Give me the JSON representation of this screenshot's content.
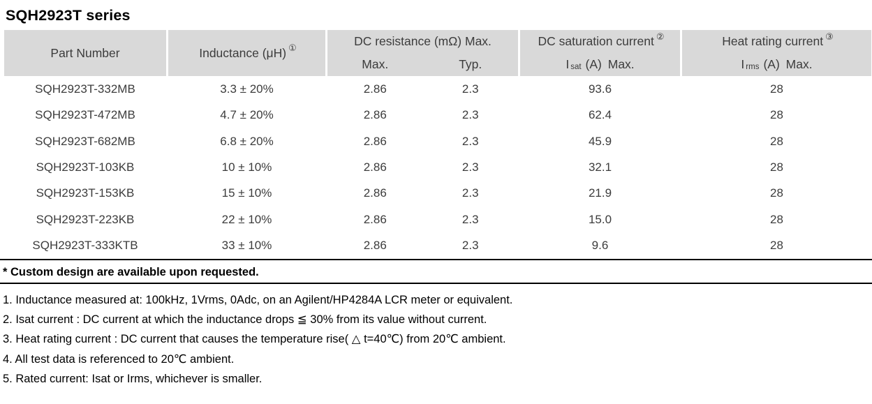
{
  "title": "SQH2923T series",
  "table": {
    "header": {
      "part_number": "Part Number",
      "inductance": "Inductance (μH)",
      "inductance_note": "①",
      "resistance": "DC resistance (mΩ) Max.",
      "res_max": "Max.",
      "res_typ": "Typ.",
      "saturation": "DC saturation current",
      "saturation_note": "②",
      "sat_symbol": "I",
      "sat_subscript": "sat",
      "sat_unit": "(A) Max.",
      "heat": "Heat rating current",
      "heat_note": "③",
      "heat_symbol": "I",
      "heat_subscript": "rms",
      "heat_unit": "(A) Max."
    },
    "rows": [
      {
        "part": "SQH2923T-332MB",
        "inductance": "3.3 ± 20%",
        "max": "2.86",
        "typ": "2.3",
        "isat": "93.6",
        "irms": "28"
      },
      {
        "part": "SQH2923T-472MB",
        "inductance": "4.7 ± 20%",
        "max": "2.86",
        "typ": "2.3",
        "isat": "62.4",
        "irms": "28"
      },
      {
        "part": "SQH2923T-682MB",
        "inductance": "6.8 ± 20%",
        "max": "2.86",
        "typ": "2.3",
        "isat": "45.9",
        "irms": "28"
      },
      {
        "part": "SQH2923T-103KB",
        "inductance": "10 ± 10%",
        "max": "2.86",
        "typ": "2.3",
        "isat": "32.1",
        "irms": "28"
      },
      {
        "part": "SQH2923T-153KB",
        "inductance": "15 ± 10%",
        "max": "2.86",
        "typ": "2.3",
        "isat": "21.9",
        "irms": "28"
      },
      {
        "part": "SQH2923T-223KB",
        "inductance": "22 ± 10%",
        "max": "2.86",
        "typ": "2.3",
        "isat": "15.0",
        "irms": "28"
      },
      {
        "part": "SQH2923T-333KTB",
        "inductance": "33 ± 10%",
        "max": "2.86",
        "typ": "2.3",
        "isat": "9.6",
        "irms": "28"
      }
    ]
  },
  "footer": {
    "custom_note": "* Custom design are available upon requested.",
    "notes": [
      "1. Inductance measured at: 100kHz, 1Vrms, 0Adc, on an Agilent/HP4284A LCR meter or equivalent.",
      "2. Isat current : DC current at which the inductance drops ≦ 30% from its value without current.",
      "3. Heat rating current : DC current that causes the temperature rise( △ t=40℃) from 20℃ ambient.",
      "4. All test data is referenced to 20℃ ambient.",
      "5. Rated current: Isat or Irms, whichever is smaller."
    ]
  },
  "colors": {
    "header_bg": "#d9d9d9",
    "table_text": "#3c3c3c",
    "rule": "#000000"
  }
}
